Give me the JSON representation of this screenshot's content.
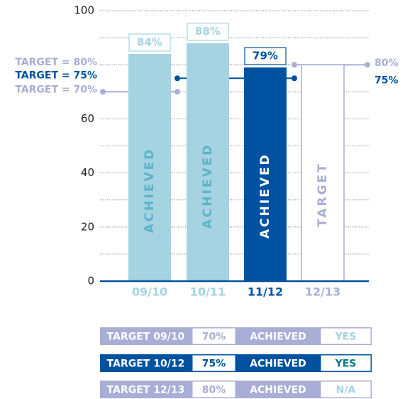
{
  "chart_data": {
    "type": "bar",
    "categories": [
      "09/10",
      "10/11",
      "11/12",
      "12/13"
    ],
    "values": [
      84,
      88,
      79,
      80
    ],
    "value_labels": [
      "84%",
      "88%",
      "79%",
      null
    ],
    "bar_labels": [
      "ACHIEVED",
      "ACHIEVED",
      "ACHIEVED",
      "TARGET"
    ],
    "colors": [
      "#a6d3e1",
      "#a6d3e1",
      "#0052a0",
      "#ffffff"
    ],
    "ylim": [
      0,
      100
    ],
    "yticks": [
      0,
      20,
      40,
      60,
      100
    ],
    "minor_yticks": [
      10,
      30,
      50,
      70,
      80,
      90
    ],
    "grid": true,
    "targets": [
      {
        "label": "TARGET = 80%",
        "value": 80,
        "color": "#a9aed6",
        "right_label": "80%"
      },
      {
        "label": "TARGET = 75%",
        "value": 75,
        "color": "#0052a0",
        "right_label": "75%"
      },
      {
        "label": "TARGET = 70%",
        "value": 70,
        "color": "#a9aed6"
      }
    ]
  },
  "table": {
    "rows": [
      [
        "TARGET 09/10",
        "70%",
        "ACHIEVED",
        "YES"
      ],
      [
        "TARGET 10/12",
        "75%",
        "ACHIEVED",
        "YES"
      ],
      [
        "TARGET 12/13",
        "80%",
        "ACHIEVED",
        "N/A"
      ]
    ]
  }
}
